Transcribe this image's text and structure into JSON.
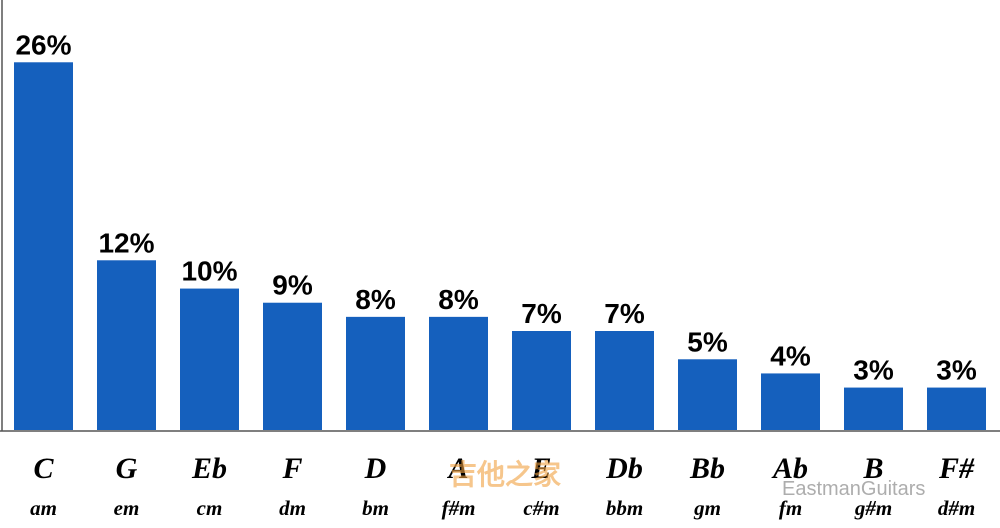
{
  "chart_data": {
    "type": "bar",
    "categories": [
      "C",
      "G",
      "Eb",
      "F",
      "D",
      "A",
      "E",
      "Db",
      "Bb",
      "Ab",
      "B",
      "F#"
    ],
    "subcategories": [
      "am",
      "em",
      "cm",
      "dm",
      "bm",
      "f#m",
      "c#m",
      "bbm",
      "gm",
      "fm",
      "g#m",
      "d#m"
    ],
    "values": [
      26,
      12,
      10,
      9,
      8,
      8,
      7,
      7,
      5,
      4,
      3,
      3
    ],
    "value_labels": [
      "26%",
      "12%",
      "10%",
      "9%",
      "8%",
      "8%",
      "7%",
      "7%",
      "5%",
      "4%",
      "3%",
      "3%"
    ],
    "color": "#1560bd",
    "ylim": [
      0,
      28
    ],
    "watermarks": [
      "吉他之家",
      "EastmanGuitars"
    ]
  }
}
